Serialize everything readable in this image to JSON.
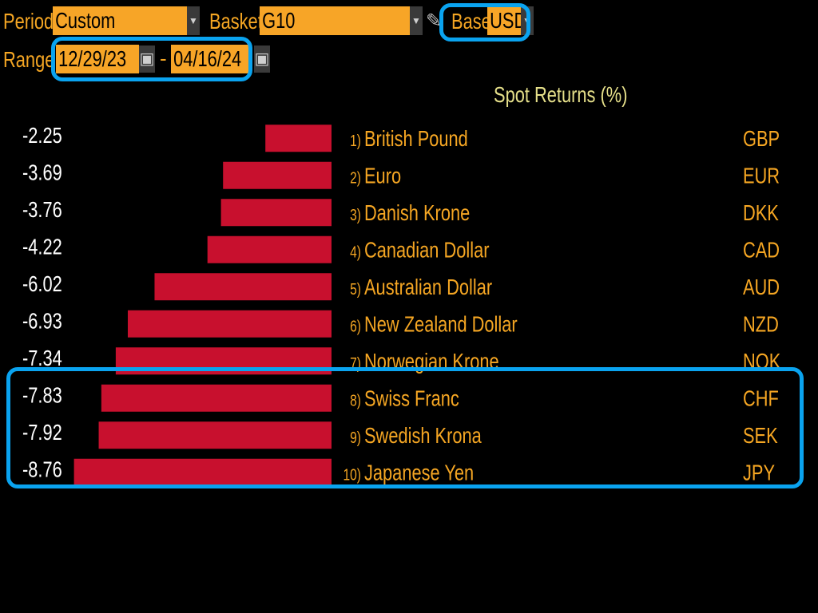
{
  "controls": {
    "period_label": "Period",
    "period_value": "Custom",
    "basket_label": "Basket",
    "basket_value": "G10",
    "base_label": "Base",
    "base_value": "USD",
    "range_label": "Range",
    "range_start": "12/29/23",
    "range_separator": "-",
    "range_end": "04/16/24",
    "dropdown_icon": "chevron-down-icon",
    "calendar_icon": "calendar-icon",
    "edit_icon": "pencil-icon"
  },
  "colors": {
    "bar": "#c8102e",
    "accent": "#f5a623",
    "field": "#f7a527",
    "highlight": "#0aa3ef",
    "title": "#e6e08a"
  },
  "chart_data": {
    "type": "bar",
    "orientation": "horizontal",
    "title": "Spot Returns (%)",
    "categories": [
      "British Pound",
      "Euro",
      "Danish Krone",
      "Canadian Dollar",
      "Australian Dollar",
      "New Zealand Dollar",
      "Norwegian Krone",
      "Swiss Franc",
      "Swedish Krona",
      "Japanese Yen"
    ],
    "ranks": [
      "1)",
      "2)",
      "3)",
      "4)",
      "5)",
      "6)",
      "7)",
      "8)",
      "9)",
      "10)"
    ],
    "codes": [
      "GBP",
      "EUR",
      "DKK",
      "CAD",
      "AUD",
      "NZD",
      "NOK",
      "CHF",
      "SEK",
      "JPY"
    ],
    "values": [
      -2.25,
      -3.69,
      -3.76,
      -4.22,
      -6.02,
      -6.93,
      -7.34,
      -7.83,
      -7.92,
      -8.76
    ],
    "value_labels": [
      "-2.25",
      "-3.69",
      "-3.76",
      "-4.22",
      "-6.02",
      "-6.93",
      "-7.34",
      "-7.83",
      "-7.92",
      "-8.76"
    ],
    "xlim": [
      -9.0,
      0
    ],
    "grid": false,
    "legend": "none"
  }
}
